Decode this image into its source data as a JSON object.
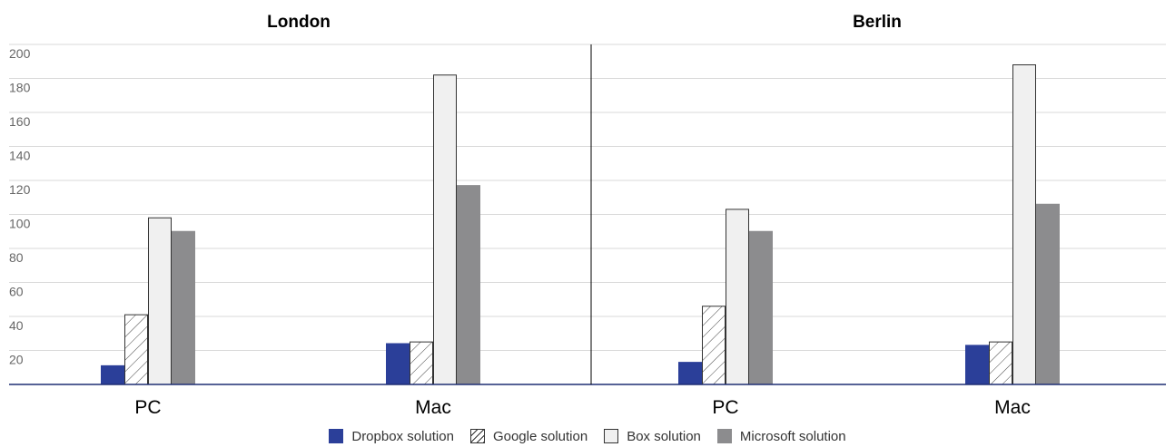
{
  "chart_data": {
    "type": "bar",
    "panels": [
      {
        "title": "London",
        "categories": [
          "PC",
          "Mac"
        ],
        "series": [
          {
            "name": "Dropbox solution",
            "values": [
              11,
              24
            ]
          },
          {
            "name": "Google solution",
            "values": [
              41,
              25
            ]
          },
          {
            "name": "Box solution",
            "values": [
              98,
              182
            ]
          },
          {
            "name": "Microsoft solution",
            "values": [
              90,
              117
            ]
          }
        ]
      },
      {
        "title": "Berlin",
        "categories": [
          "PC",
          "Mac"
        ],
        "series": [
          {
            "name": "Dropbox solution",
            "values": [
              13,
              23
            ]
          },
          {
            "name": "Google solution",
            "values": [
              46,
              25
            ]
          },
          {
            "name": "Box solution",
            "values": [
              103,
              188
            ]
          },
          {
            "name": "Microsoft solution",
            "values": [
              90,
              106
            ]
          }
        ]
      }
    ],
    "yticks": [
      20,
      40,
      60,
      80,
      100,
      120,
      140,
      160,
      180,
      200
    ],
    "ylim": [
      0,
      200
    ],
    "grid": true,
    "legend_position": "bottom",
    "colors": {
      "Dropbox solution": "#2b3f99",
      "Google solution": "#ffffff",
      "Box solution": "#f0f0f0",
      "Microsoft solution": "#8c8c8e"
    },
    "xlabel": "",
    "ylabel": ""
  }
}
